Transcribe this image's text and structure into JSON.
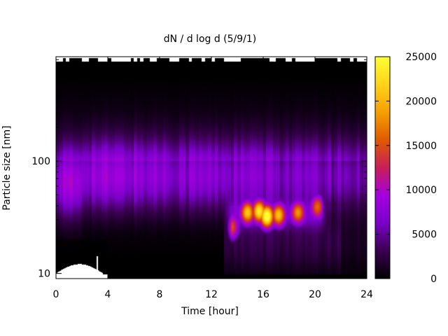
{
  "chart_data": {
    "type": "heatmap",
    "title": "dN / d log d (5/9/1)",
    "xlabel": "Time [hour]",
    "ylabel": "Particle size [nm]",
    "x_range": [
      0,
      24
    ],
    "y_range": [
      9,
      850
    ],
    "y_scale": "log",
    "x_ticks": [
      0,
      4,
      8,
      12,
      16,
      20,
      24
    ],
    "x_tick_labels": [
      "0",
      "4",
      "8",
      "12",
      "16",
      "20",
      "24"
    ],
    "y_ticks": [
      10,
      100
    ],
    "y_tick_labels": [
      "10",
      "100"
    ],
    "colorbar": {
      "range": [
        0,
        25000
      ],
      "ticks": [
        0,
        5000,
        10000,
        15000,
        20000,
        25000
      ],
      "tick_labels": [
        "0",
        "5000",
        "10000",
        "15000",
        "20000",
        "25000"
      ],
      "colormap": [
        "#000000",
        "#3a0050",
        "#7a00c8",
        "#a500e0",
        "#c81e5a",
        "#e05a00",
        "#f5a000",
        "#ffd31a",
        "#ffff33"
      ]
    },
    "background_mode": {
      "center_nm": 65,
      "peak_value": 9000
    },
    "nucleation_event": {
      "start_hour": 13.4,
      "end_hour": 20.7,
      "hotspots": [
        {
          "hour": 13.6,
          "size_nm": 25,
          "value": 13000
        },
        {
          "hour": 14.8,
          "size_nm": 35,
          "value": 17500
        },
        {
          "hour": 15.7,
          "size_nm": 36,
          "value": 20000
        },
        {
          "hour": 16.3,
          "size_nm": 32,
          "value": 23000
        },
        {
          "hour": 17.2,
          "size_nm": 33,
          "value": 17000
        },
        {
          "hour": 18.7,
          "size_nm": 35,
          "value": 14500
        },
        {
          "hour": 20.2,
          "size_nm": 40,
          "value": 13500
        }
      ]
    },
    "missing_data_color": "#ffffff"
  }
}
